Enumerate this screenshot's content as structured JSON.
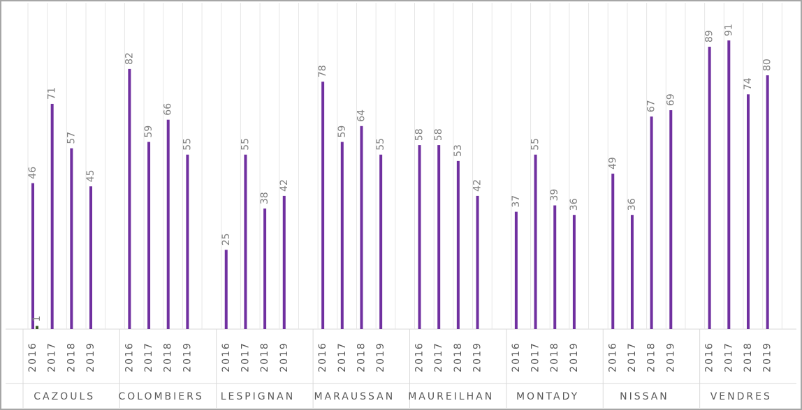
{
  "chart_data": {
    "type": "bar",
    "groups": [
      {
        "name": "CAZOULS",
        "categories": [
          "2016",
          "2017",
          "2018",
          "2019"
        ]
      },
      {
        "name": "COLOMBIERS",
        "categories": [
          "2016",
          "2017",
          "2018",
          "2019"
        ]
      },
      {
        "name": "LESPIGNAN",
        "categories": [
          "2016",
          "2017",
          "2018",
          "2019"
        ]
      },
      {
        "name": "MARAUSSAN",
        "categories": [
          "2016",
          "2017",
          "2018",
          "2019"
        ]
      },
      {
        "name": "MAUREILHAN",
        "categories": [
          "2016",
          "2017",
          "2018",
          "2019"
        ]
      },
      {
        "name": "MONTADY",
        "categories": [
          "2016",
          "2017",
          "2018",
          "2019"
        ]
      },
      {
        "name": "NISSAN",
        "categories": [
          "2016",
          "2017",
          "2018",
          "2019"
        ]
      },
      {
        "name": "VENDRES",
        "categories": [
          "2016",
          "2017",
          "2018",
          "2019"
        ]
      }
    ],
    "series": [
      {
        "color": "#7030a0",
        "values": [
          [
            46,
            71,
            57,
            45
          ],
          [
            82,
            59,
            66,
            55
          ],
          [
            25,
            55,
            38,
            42
          ],
          [
            78,
            59,
            64,
            55
          ],
          [
            58,
            58,
            53,
            42
          ],
          [
            37,
            55,
            39,
            36
          ],
          [
            49,
            36,
            67,
            69
          ],
          [
            89,
            91,
            74,
            80
          ]
        ]
      },
      {
        "color": "#385723",
        "values": [
          [
            1,
            null,
            null,
            null
          ],
          [
            null,
            null,
            null,
            null
          ],
          [
            null,
            null,
            null,
            null
          ],
          [
            null,
            null,
            null,
            null
          ],
          [
            null,
            null,
            null,
            null
          ],
          [
            null,
            null,
            null,
            null
          ],
          [
            null,
            null,
            null,
            null
          ],
          [
            null,
            null,
            null,
            null
          ]
        ]
      }
    ],
    "ylim": [
      0,
      100
    ],
    "grid": true
  }
}
